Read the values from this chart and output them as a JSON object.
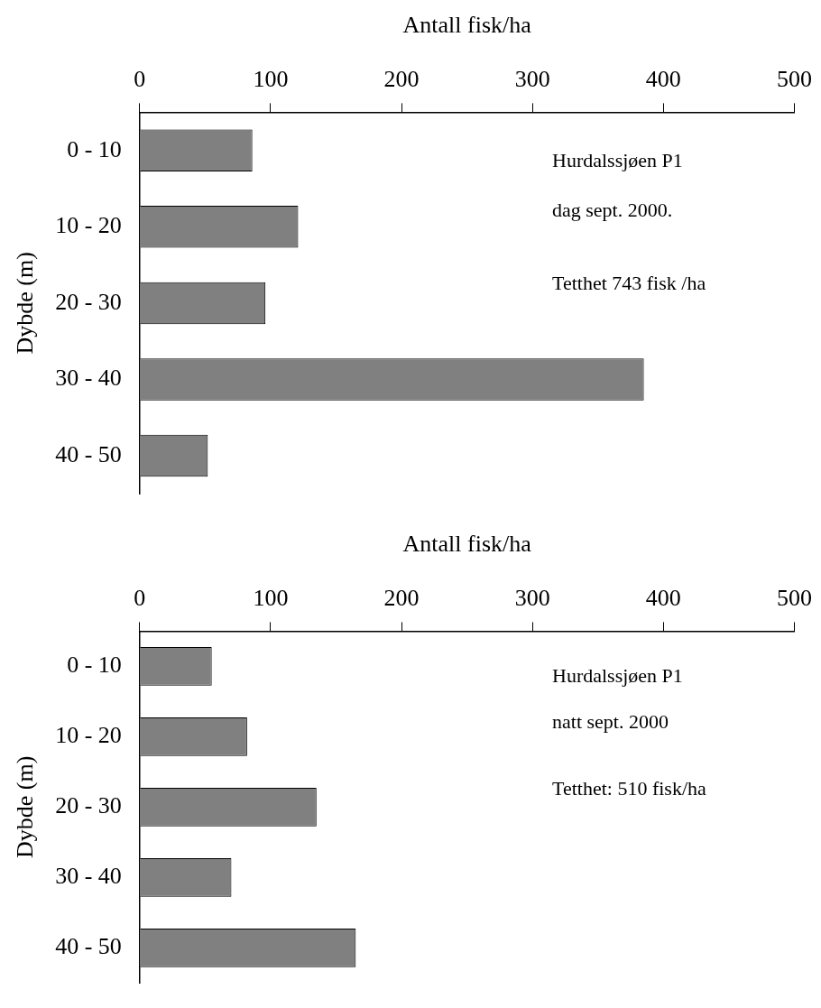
{
  "chart_data": [
    {
      "type": "bar",
      "orientation": "horizontal",
      "xlabel": "Antall fisk/ha",
      "ylabel": "Dybde (m)",
      "categories": [
        "0 - 10",
        "10 - 20",
        "20 - 30",
        "30 - 40",
        "40 - 50"
      ],
      "values": [
        86,
        121,
        96,
        385,
        52
      ],
      "color": "#808080",
      "xlim": [
        0,
        500
      ],
      "xticks": [
        0,
        100,
        200,
        300,
        400,
        500
      ],
      "annotations": [
        "Hurdalssjøen P1",
        "dag sept. 2000.",
        "Tetthet 743 fisk /ha"
      ]
    },
    {
      "type": "bar",
      "orientation": "horizontal",
      "xlabel": "Antall fisk/ha",
      "ylabel": "Dybde (m)",
      "categories": [
        "0 - 10",
        "10 - 20",
        "20 - 30",
        "30 - 40",
        "40 - 50"
      ],
      "values": [
        55,
        82,
        135,
        70,
        165
      ],
      "color": "#808080",
      "xlim": [
        0,
        500
      ],
      "xticks": [
        0,
        100,
        200,
        300,
        400,
        500
      ],
      "annotations": [
        "Hurdalssjøen P1",
        "natt sept. 2000",
        "Tetthet: 510 fisk/ha"
      ]
    }
  ]
}
